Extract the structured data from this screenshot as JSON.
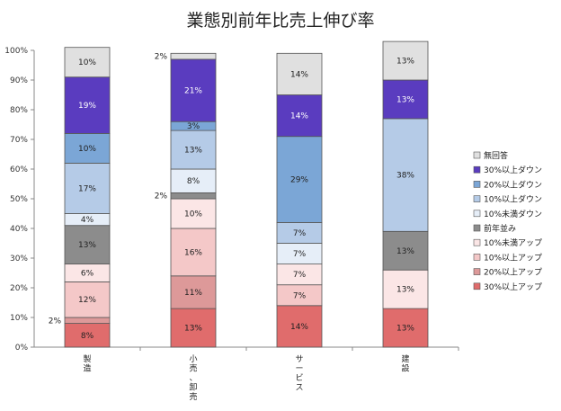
{
  "chart_data": {
    "type": "bar",
    "stacked": true,
    "percent": true,
    "title": "業態別前年比売上伸び率",
    "categories": [
      "製造",
      "小売、卸売",
      "サービス",
      "建設"
    ],
    "ylim": [
      0,
      100
    ],
    "yticks": [
      "0%",
      "10%",
      "20%",
      "30%",
      "40%",
      "50%",
      "60%",
      "70%",
      "80%",
      "90%",
      "100%"
    ],
    "grid": false,
    "legend_position": "right",
    "series": [
      {
        "name": "30%以上アップ",
        "color": "#e06c6c",
        "values": [
          8,
          13,
          14,
          13
        ]
      },
      {
        "name": "20%以上アップ",
        "color": "#dd9999",
        "values": [
          2,
          11,
          0,
          0
        ]
      },
      {
        "name": "10%以上アップ",
        "color": "#f4c8c8",
        "values": [
          12,
          16,
          7,
          0
        ]
      },
      {
        "name": "10%未満アップ",
        "color": "#fbe6e6",
        "values": [
          6,
          10,
          7,
          13
        ]
      },
      {
        "name": "前年並み",
        "color": "#8c8c8c",
        "values": [
          13,
          2,
          0,
          13
        ]
      },
      {
        "name": "10%未満ダウン",
        "color": "#e6eef8",
        "values": [
          4,
          8,
          7,
          0
        ]
      },
      {
        "name": "10%以上ダウン",
        "color": "#b5cbe7",
        "values": [
          17,
          13,
          7,
          38
        ]
      },
      {
        "name": "20%以上ダウン",
        "color": "#7ba6d6",
        "values": [
          10,
          3,
          29,
          0
        ]
      },
      {
        "name": "30%以上ダウン",
        "color": "#5a3cbf",
        "values": [
          19,
          21,
          14,
          13
        ]
      },
      {
        "name": "無回答",
        "color": "#e0e0e0",
        "values": [
          10,
          2,
          14,
          13
        ]
      }
    ],
    "data_labels": [
      [
        "8%",
        "2%",
        "12%",
        "6%",
        "13%",
        "4%",
        "17%",
        "10%",
        "19%",
        "10%"
      ],
      [
        "13%",
        "11%",
        "16%",
        "10%",
        "2%",
        "8%",
        "13%",
        "3%",
        "21%",
        "2%"
      ],
      [
        "14%",
        "",
        "7%",
        "7%",
        "",
        "7%",
        "7%",
        "29%",
        "14%",
        "14%"
      ],
      [
        "13%",
        "",
        "",
        "13%",
        "13%",
        "",
        "38%",
        "",
        "13%",
        "13%"
      ]
    ]
  }
}
